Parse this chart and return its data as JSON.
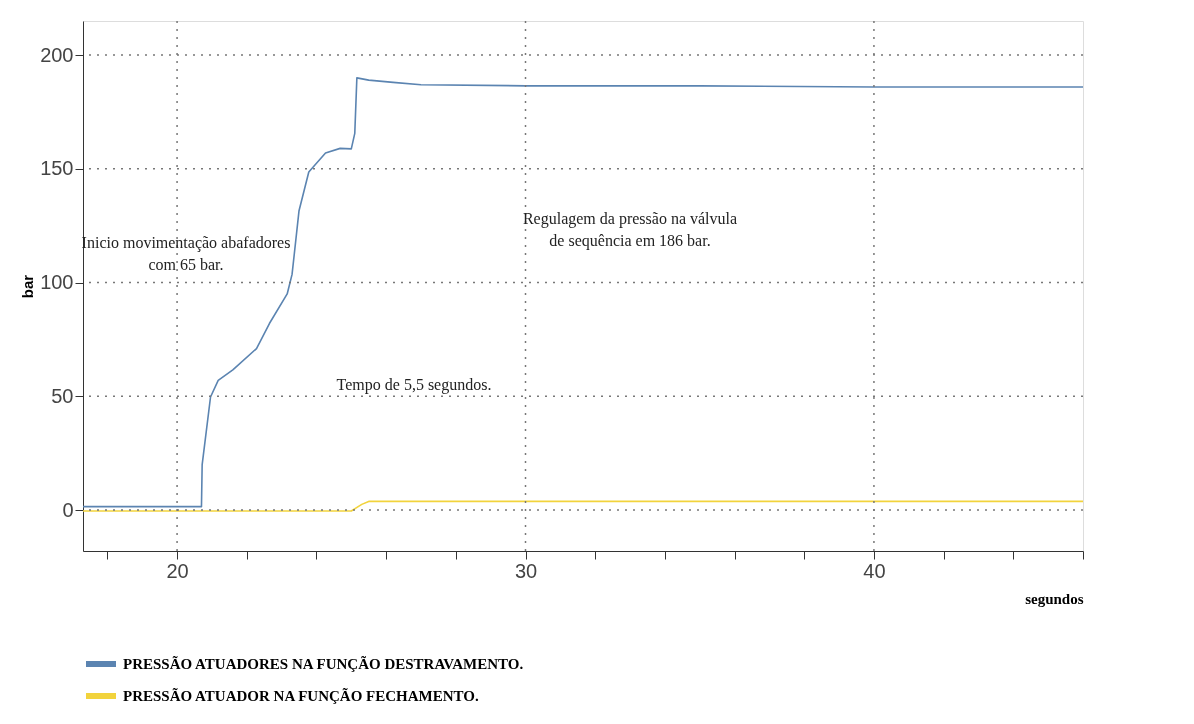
{
  "chart_data": {
    "type": "line",
    "xlabel": "segundos",
    "ylabel": "bar",
    "xlim": [
      17.3,
      46.0
    ],
    "ylim": [
      -18,
      215
    ],
    "xticks": [
      {
        "value": 18,
        "label": null
      },
      20,
      {
        "value": 22,
        "label": null
      },
      {
        "value": 24,
        "label": null
      },
      {
        "value": 26,
        "label": null
      },
      {
        "value": 28,
        "label": null
      },
      30,
      {
        "value": 32,
        "label": null
      },
      {
        "value": 34,
        "label": null
      },
      {
        "value": 36,
        "label": null
      },
      {
        "value": 38,
        "label": null
      },
      40,
      {
        "value": 42,
        "label": null
      },
      {
        "value": 44,
        "label": null
      },
      {
        "value": 46,
        "label": null
      }
    ],
    "yticks": [
      0,
      50,
      100,
      150,
      200
    ],
    "grid": true,
    "legend": "bottom",
    "marker": "none",
    "line_style": "solid",
    "series": [
      {
        "name": "PRESSÃO ATUADORES NA FUNÇÃO DESTRAVAMENTO.",
        "color": "#5b84b1",
        "x": [
          17.3,
          20.7,
          20.72,
          20.96,
          21.18,
          21.6,
          22.28,
          22.65,
          23.16,
          23.3,
          23.5,
          23.78,
          24.26,
          24.68,
          25.0,
          25.1,
          25.16,
          25.5,
          26.2,
          27.0,
          30.0,
          35.0,
          40.0,
          46.0
        ],
        "values": [
          1.5,
          1.5,
          20,
          49.7,
          57,
          61.6,
          71,
          82,
          95,
          103.6,
          131.6,
          148.6,
          157,
          159,
          158.8,
          165.6,
          190,
          189,
          188,
          187,
          186.5,
          186.5,
          186,
          186
        ]
      },
      {
        "name": "PRESSÃO ATUADOR NA FUNÇÃO FECHAMENTO.",
        "color": "#f2d33c",
        "x": [
          17.3,
          20.0,
          25.0,
          25.3,
          25.5,
          30.0,
          35.0,
          40.0,
          46.0
        ],
        "values": [
          -0.4,
          -0.4,
          -0.4,
          2.5,
          3.8,
          3.8,
          3.8,
          3.8,
          3.8
        ]
      }
    ],
    "annotations": [
      "Inicio movimentação abafadores com 65 bar.",
      "Tempo de 5,5 segundos.",
      "Regulagem da pressão na válvula de sequência em 186 bar."
    ]
  }
}
